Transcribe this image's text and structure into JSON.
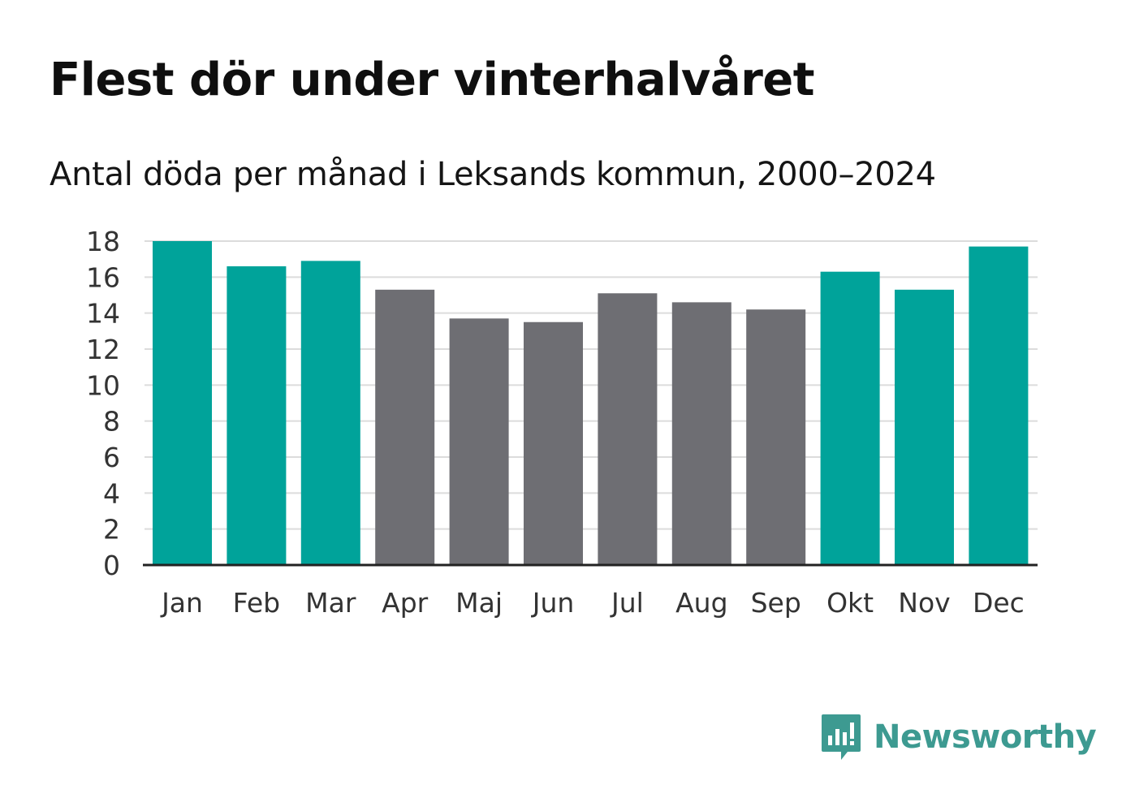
{
  "title": "Flest dör under vinterhalvåret",
  "subtitle": "Antal döda per månad i Leksands kommun, 2000–2024",
  "brand": {
    "name": "Newsworthy",
    "color": "#3d9a91",
    "icon": "newsworthy-logo-icon"
  },
  "colors": {
    "winter": "#00a39a",
    "summer": "#6e6e73",
    "grid": "#dcdcdc",
    "axis": "#222222"
  },
  "chart_data": {
    "type": "bar",
    "title": "Flest dör under vinterhalvåret",
    "subtitle": "Antal döda per månad i Leksands kommun, 2000–2024",
    "xlabel": "",
    "ylabel": "",
    "ylim": [
      0,
      18
    ],
    "yticks": [
      0,
      2,
      4,
      6,
      8,
      10,
      12,
      14,
      16,
      18
    ],
    "grid": true,
    "categories": [
      "Jan",
      "Feb",
      "Mar",
      "Apr",
      "Maj",
      "Jun",
      "Jul",
      "Aug",
      "Sep",
      "Okt",
      "Nov",
      "Dec"
    ],
    "values": [
      18.0,
      16.6,
      16.9,
      15.3,
      13.7,
      13.5,
      15.1,
      14.6,
      14.2,
      16.3,
      15.3,
      17.7
    ],
    "highlight": [
      true,
      true,
      true,
      false,
      false,
      false,
      false,
      false,
      false,
      true,
      true,
      true
    ]
  }
}
